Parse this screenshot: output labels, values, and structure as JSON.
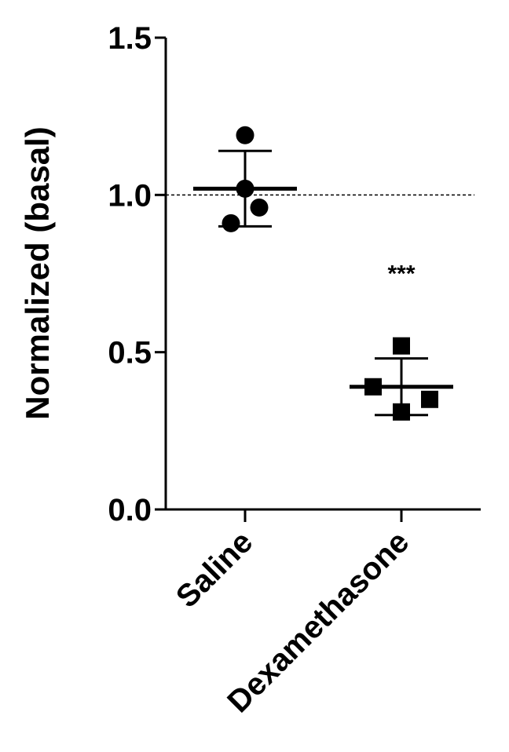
{
  "chart_data": {
    "type": "scatter",
    "ylabel": "Normalized (basal)",
    "ylim": [
      0,
      1.5
    ],
    "yticks": [
      0.0,
      0.5,
      1.0,
      1.5
    ],
    "ytick_labels": [
      "0.0",
      "0.5",
      "1.0",
      "1.5"
    ],
    "reference_line": 1.0,
    "categories": [
      "Saline",
      "Dexamethasone"
    ],
    "series": [
      {
        "category": "Saline",
        "marker": "circle",
        "points": [
          1.19,
          1.02,
          0.96,
          0.91
        ],
        "mean": 1.02,
        "sd_upper": 1.14,
        "sd_lower": 0.9
      },
      {
        "category": "Dexamethasone",
        "marker": "square",
        "points": [
          0.52,
          0.39,
          0.31,
          0.35
        ],
        "mean": 0.39,
        "sd_upper": 0.48,
        "sd_lower": 0.3
      }
    ],
    "annotations": [
      {
        "category": "Dexamethasone",
        "text": "***",
        "y": 0.75
      }
    ],
    "colors": {
      "ink": "#000000",
      "background": "#ffffff"
    }
  }
}
